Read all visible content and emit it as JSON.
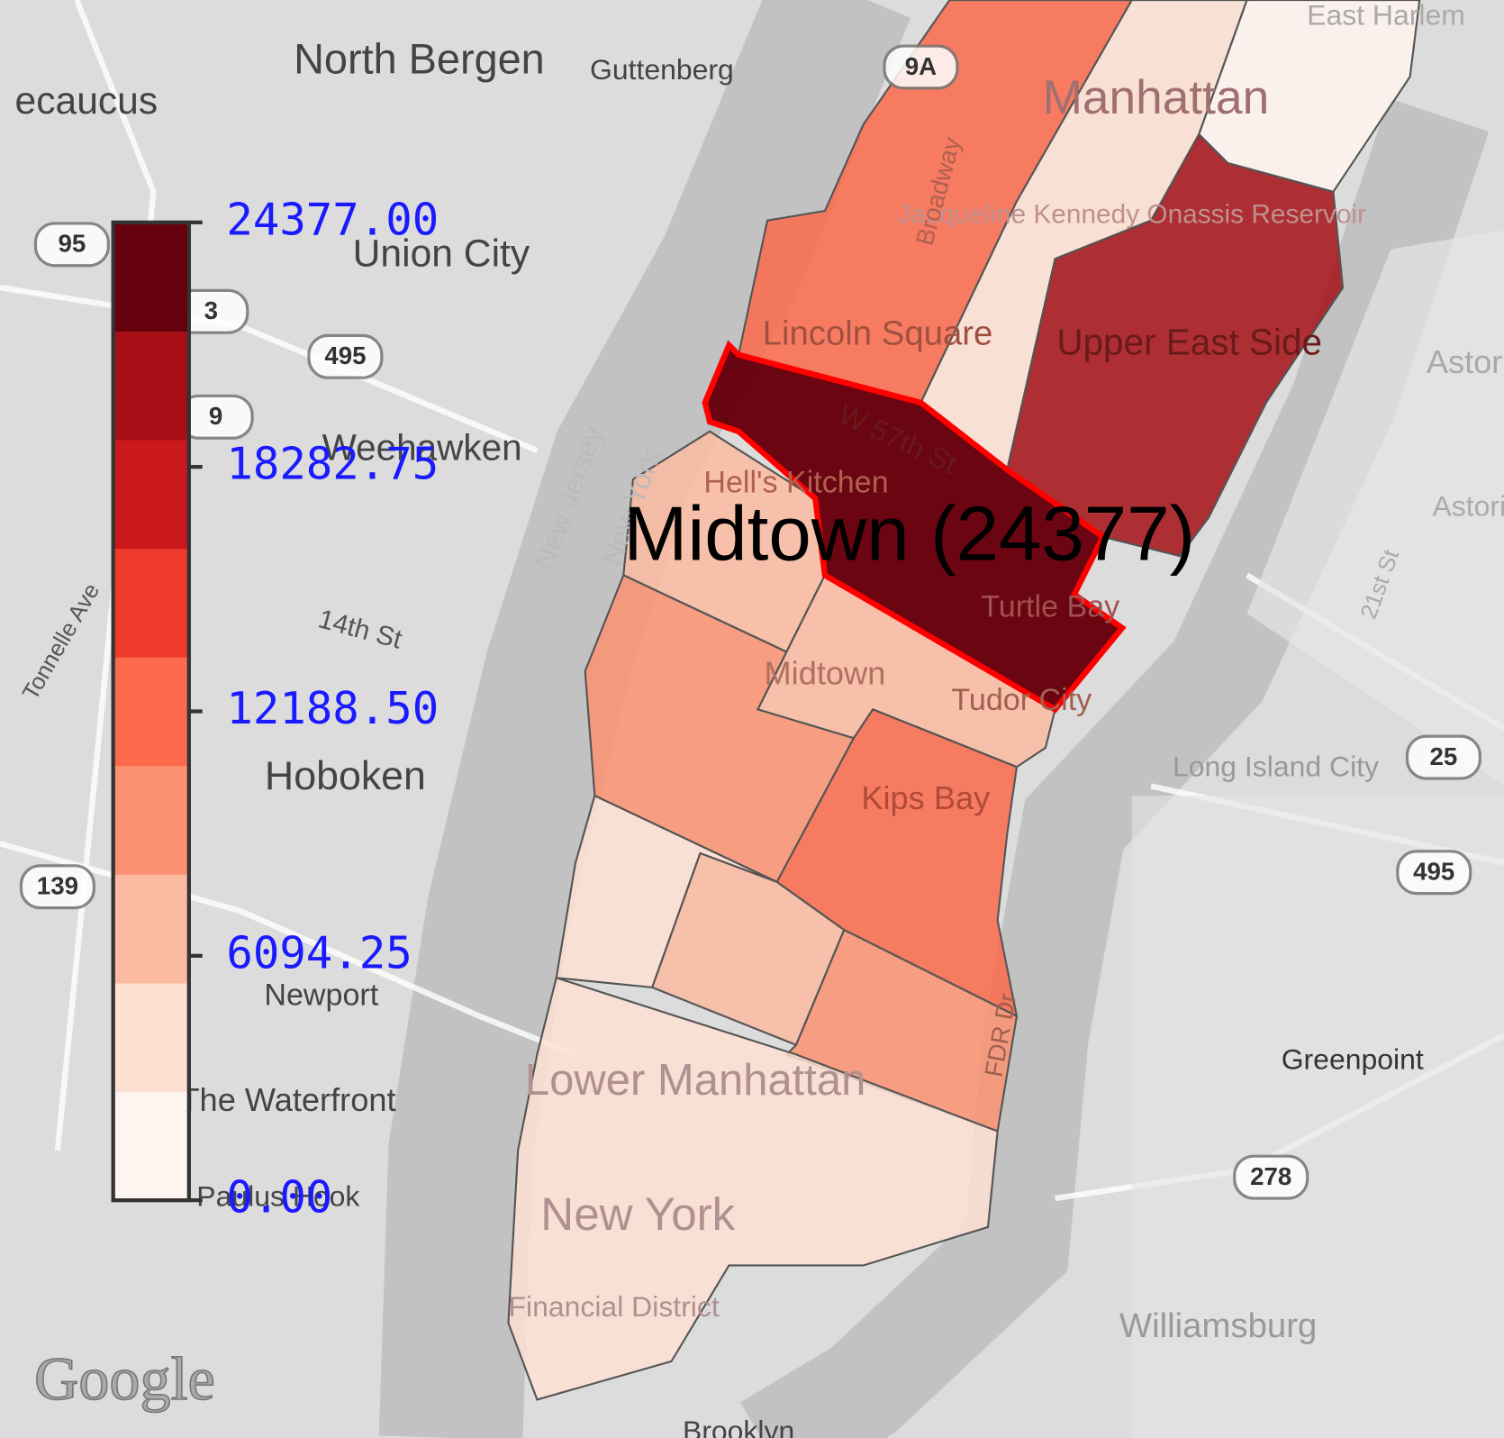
{
  "map": {
    "labels": [
      "North Bergen",
      "Guttenberg",
      "ecaucus",
      "Union City",
      "Weehawken",
      "Hoboken",
      "Newport",
      "The Waterfront",
      "Paulus Hook",
      "14th St",
      "Tonnelle Ave",
      "New Jersey",
      "New York",
      "Manhattan",
      "Jacqueline Kennedy Onassis Reservoir",
      "Broadway",
      "Lincoln Square",
      "Upper East Side",
      "W 57th St",
      "Hell's Kitchen",
      "Turtle Bay",
      "Midtown",
      "Tudor City",
      "Kips Bay",
      "Lower Manhattan",
      "New York",
      "Financial District",
      "Long Island City",
      "Greenpoint",
      "Williamsburg",
      "Brooklyn",
      "Astoria",
      "Astoria",
      "East Harlem",
      "21st St",
      "FDR Dr"
    ],
    "shields": [
      "95",
      "3",
      "495",
      "9",
      "139",
      "9A",
      "25",
      "495",
      "278"
    ],
    "attribution": "Google"
  },
  "region_values": [
    12500,
    3500,
    19500,
    2000,
    24377,
    6000,
    6000,
    9500,
    12800,
    3500,
    7500,
    9000,
    3500
  ],
  "hover_label": "Midtown (24377)",
  "colorbar": {
    "lim": [
      0,
      24377
    ],
    "ticks": [
      {
        "value": 0,
        "label": "0.00"
      },
      {
        "value": 6094.25,
        "label": "6094.25"
      },
      {
        "value": 12188.5,
        "label": "12188.50"
      },
      {
        "value": 18282.75,
        "label": "18282.75"
      },
      {
        "value": 24377,
        "label": "24377.00"
      }
    ],
    "colors": [
      "#fff5f0",
      "#fee0d2",
      "#fcbba1",
      "#fc9272",
      "#fb6a4a",
      "#ef3b2c",
      "#cb181d",
      "#a50f15",
      "#67000d"
    ]
  }
}
